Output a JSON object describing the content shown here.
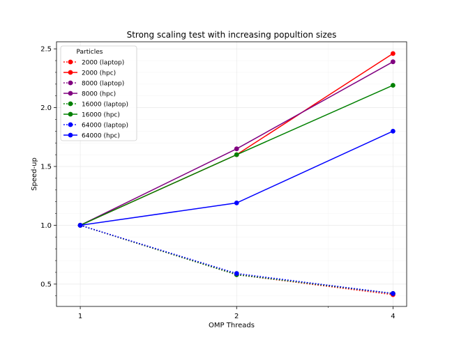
{
  "chart_data": {
    "type": "line",
    "title": "Strong scaling test with increasing popultion sizes",
    "xlabel": "OMP Threads",
    "ylabel": "Speed-up",
    "x": [
      1,
      2,
      4
    ],
    "xscale": "log2",
    "xlim": [
      0.9,
      4.25
    ],
    "ylim": [
      0.31,
      2.56
    ],
    "xticks": [
      1,
      2,
      4
    ],
    "xtick_labels": [
      "1",
      "2",
      "4"
    ],
    "yticks": [
      0.5,
      1.0,
      1.5,
      2.0,
      2.5
    ],
    "ytick_labels": [
      "0.5",
      "1.0",
      "1.5",
      "2.0",
      "2.5"
    ],
    "grid": true,
    "legend_title": "Particles",
    "legend_position": "top-left",
    "series": [
      {
        "name": "2000 (laptop)",
        "values": [
          1.0,
          0.58,
          0.41
        ],
        "color": "#ff0000",
        "style": "dotted"
      },
      {
        "name": "2000 (hpc)",
        "values": [
          1.0,
          1.6,
          2.46
        ],
        "color": "#ff0000",
        "style": "solid"
      },
      {
        "name": "8000 (laptop)",
        "values": [
          1.0,
          0.58,
          0.42
        ],
        "color": "#800080",
        "style": "dotted"
      },
      {
        "name": "8000 (hpc)",
        "values": [
          1.0,
          1.65,
          2.39
        ],
        "color": "#800080",
        "style": "solid"
      },
      {
        "name": "16000 (laptop)",
        "values": [
          1.0,
          0.58,
          0.42
        ],
        "color": "#008000",
        "style": "dotted"
      },
      {
        "name": "16000 (hpc)",
        "values": [
          1.0,
          1.6,
          2.19
        ],
        "color": "#008000",
        "style": "solid"
      },
      {
        "name": "64000 (laptop)",
        "values": [
          1.0,
          0.59,
          0.42
        ],
        "color": "#0000ff",
        "style": "dotted"
      },
      {
        "name": "64000 (hpc)",
        "values": [
          1.0,
          1.19,
          1.8
        ],
        "color": "#0000ff",
        "style": "solid"
      }
    ]
  }
}
